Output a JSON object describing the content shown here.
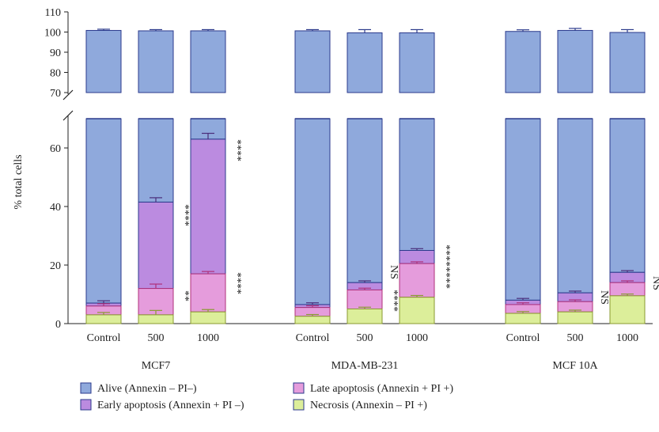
{
  "chart_data": {
    "type": "bar",
    "stacked": true,
    "axis_break": {
      "lower_range": [
        0,
        70
      ],
      "upper_range": [
        70,
        110
      ]
    },
    "ylabel": "% total cells",
    "yticks_lower": [
      "0",
      "20",
      "40",
      "60"
    ],
    "yticks_upper": [
      "70",
      "80",
      "90",
      "100",
      "110"
    ],
    "groups": [
      {
        "name": "MCF7",
        "categories": [
          "Control",
          "500",
          "1000"
        ],
        "necrosis": [
          3.0,
          3.0,
          4.0
        ],
        "late": [
          3.0,
          9.0,
          13.0
        ],
        "early": [
          1.0,
          29.5,
          46.0
        ],
        "alive_total": [
          100.8,
          100.6,
          100.6
        ],
        "err_necrosis": [
          0.8,
          1.5,
          0.8
        ],
        "err_late": [
          0.8,
          1.5,
          0.8
        ],
        "err_early": [
          0.8,
          1.5,
          2.0
        ],
        "err_total": [
          0.6,
          0.6,
          0.6
        ],
        "annotations": [
          {
            "bar": 1,
            "segment": "late",
            "text": "**"
          },
          {
            "bar": 1,
            "segment": "early",
            "text": "****"
          },
          {
            "bar": 2,
            "segment": "late",
            "text": "****"
          },
          {
            "bar": 2,
            "segment": "early",
            "text": "****"
          }
        ]
      },
      {
        "name": "MDA-MB-231",
        "categories": [
          "Control",
          "500",
          "1000"
        ],
        "necrosis": [
          2.5,
          5.0,
          9.0
        ],
        "late": [
          3.0,
          6.5,
          11.5
        ],
        "early": [
          1.0,
          2.5,
          4.5
        ],
        "alive_total": [
          100.6,
          99.6,
          99.6
        ],
        "err_necrosis": [
          0.6,
          0.6,
          0.6
        ],
        "err_late": [
          0.6,
          0.6,
          0.6
        ],
        "err_early": [
          0.6,
          0.6,
          0.6
        ],
        "err_total": [
          0.6,
          1.6,
          1.6
        ],
        "annotations": [
          {
            "bar": 1,
            "segment": "necrosis",
            "text": "****"
          },
          {
            "bar": 1,
            "segment": "late",
            "text": "NS"
          },
          {
            "bar": 2,
            "segment": "mid",
            "text": "********"
          }
        ]
      },
      {
        "name": "MCF 10A",
        "categories": [
          "Control",
          "500",
          "1000"
        ],
        "necrosis": [
          3.5,
          4.0,
          9.5
        ],
        "late": [
          3.0,
          3.5,
          4.5
        ],
        "early": [
          1.5,
          3.0,
          3.5
        ],
        "alive_total": [
          100.3,
          100.8,
          99.8
        ],
        "err_necrosis": [
          0.6,
          0.6,
          0.6
        ],
        "err_late": [
          0.6,
          0.6,
          0.6
        ],
        "err_early": [
          0.6,
          0.6,
          0.6
        ],
        "err_total": [
          0.8,
          1.0,
          1.4
        ],
        "annotations": [
          {
            "bar": 1,
            "segment": "low",
            "text": "NS"
          },
          {
            "bar": 2,
            "segment": "low",
            "text": "NS"
          }
        ]
      }
    ],
    "legend": [
      {
        "label": "Alive (Annexin – PI–)",
        "color": "#8fa9dc"
      },
      {
        "label": "Late apoptosis (Annexin + PI +)",
        "color": "#e59cdc"
      },
      {
        "label": "Early apoptosis (Annexin + PI –)",
        "color": "#bb8be0"
      },
      {
        "label": "Necrosis (Annexin – PI +)",
        "color": "#dcee9a"
      }
    ],
    "colors": {
      "alive": "#8fa9dc",
      "early": "#bb8be0",
      "late": "#e59cdc",
      "necrosis": "#dcee9a",
      "border": "#2b3a8c",
      "err_early": "#4a2c7a",
      "err_late": "#b0307a",
      "err_necrosis": "#8a9a30"
    }
  }
}
